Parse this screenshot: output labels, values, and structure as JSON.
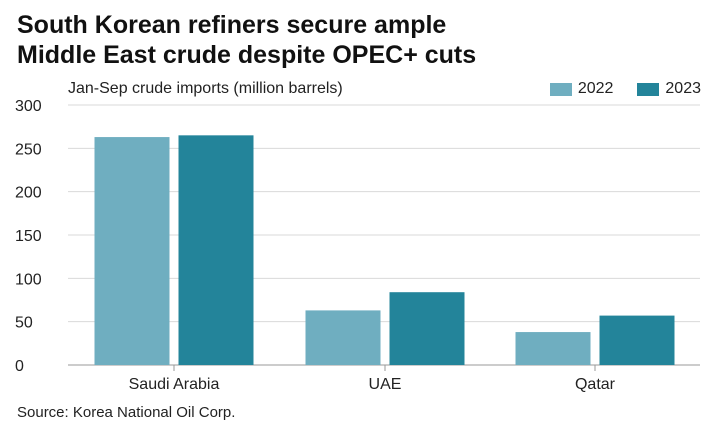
{
  "title_line1": "South Korean refiners secure ample",
  "title_line2": "Middle East crude despite OPEC+ cuts",
  "subtitle": "Jan-Sep crude imports (million barrels)",
  "source": "Source: Korea National Oil Corp.",
  "colors": {
    "series_2022": "#6FAEC0",
    "series_2023": "#23849A",
    "grid": "#d9d9d9",
    "axis": "#999999"
  },
  "chart_data": {
    "type": "bar",
    "title": "South Korean refiners secure ample Middle East crude despite OPEC+ cuts",
    "ylabel": "Jan-Sep crude imports (million barrels)",
    "xlabel": "",
    "categories": [
      "Saudi Arabia",
      "UAE",
      "Qatar"
    ],
    "series": [
      {
        "name": "2022",
        "values": [
          263,
          63,
          38
        ]
      },
      {
        "name": "2023",
        "values": [
          265,
          84,
          57
        ]
      }
    ],
    "ylim": [
      0,
      300
    ],
    "yticks": [
      0,
      50,
      100,
      150,
      200,
      250,
      300
    ],
    "grid": true,
    "legend": "top-right"
  }
}
